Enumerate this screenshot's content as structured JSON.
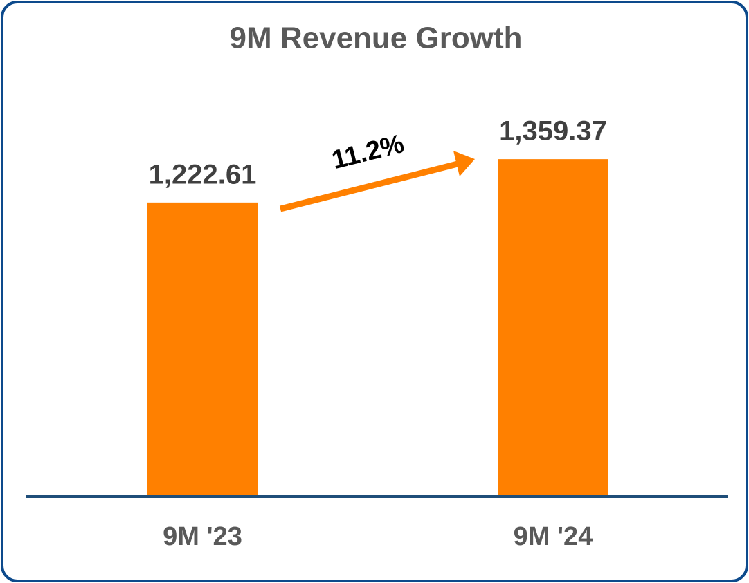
{
  "chart_data": {
    "type": "bar",
    "title": "9M Revenue Growth",
    "categories": [
      "9M '23",
      "9M '24"
    ],
    "values": [
      1222.61,
      1359.37
    ],
    "value_labels": [
      "1,222.61",
      "1,359.37"
    ],
    "annotation": "11.2%",
    "color": "#ff8000",
    "ylim": [
      300,
      1400
    ]
  }
}
